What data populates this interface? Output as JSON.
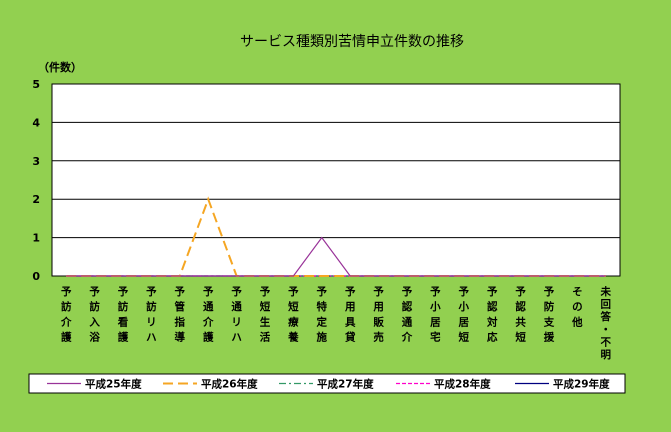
{
  "chart_data": {
    "type": "line",
    "title": "サービス種類別苦情申立件数の推移",
    "ylabel": "（件数）",
    "xlabel": "",
    "ylim": [
      0,
      5
    ],
    "yticks": [
      0,
      1,
      2,
      3,
      4,
      5
    ],
    "grid": true,
    "legend_position": "bottom",
    "categories": [
      "予訪介護",
      "予訪入浴",
      "予訪看護",
      "予訪リハ",
      "予管指導",
      "予通介護",
      "予通リハ",
      "予短生活",
      "予短療養",
      "予特定施",
      "予用具貸",
      "予用販売",
      "予認通介",
      "予小居宅",
      "予小居短",
      "予認対応",
      "予認共短",
      "予防支援",
      "その他",
      "未回答・不明"
    ],
    "series": [
      {
        "name": "平成25年度",
        "color": "#993399",
        "dash": "solid",
        "values": [
          0,
          0,
          0,
          0,
          0,
          0,
          0,
          0,
          0,
          1,
          0,
          0,
          0,
          0,
          0,
          0,
          0,
          0,
          0,
          0
        ]
      },
      {
        "name": "平成26年度",
        "color": "#F5A623",
        "dash": "long-dash",
        "values": [
          0,
          0,
          0,
          0,
          0,
          2,
          0,
          0,
          0,
          0,
          0,
          0,
          0,
          0,
          0,
          0,
          0,
          0,
          0,
          0
        ]
      },
      {
        "name": "平成27年度",
        "color": "#339966",
        "dash": "dash-dot",
        "values": [
          0,
          0,
          0,
          0,
          0,
          0,
          0,
          0,
          0,
          0,
          0,
          0,
          0,
          0,
          0,
          0,
          0,
          0,
          0,
          0
        ]
      },
      {
        "name": "平成28年度",
        "color": "#FF00CC",
        "dash": "short-dash",
        "values": [
          0,
          0,
          0,
          0,
          0,
          0,
          0,
          0,
          0,
          0,
          0,
          0,
          0,
          0,
          0,
          0,
          0,
          0,
          0,
          0
        ]
      },
      {
        "name": "平成29年度",
        "color": "#000080",
        "dash": "solid",
        "values": [
          0,
          0,
          0,
          0,
          0,
          0,
          0,
          0,
          0,
          0,
          0,
          0,
          0,
          0,
          0,
          0,
          0,
          0,
          0,
          0
        ]
      }
    ]
  }
}
